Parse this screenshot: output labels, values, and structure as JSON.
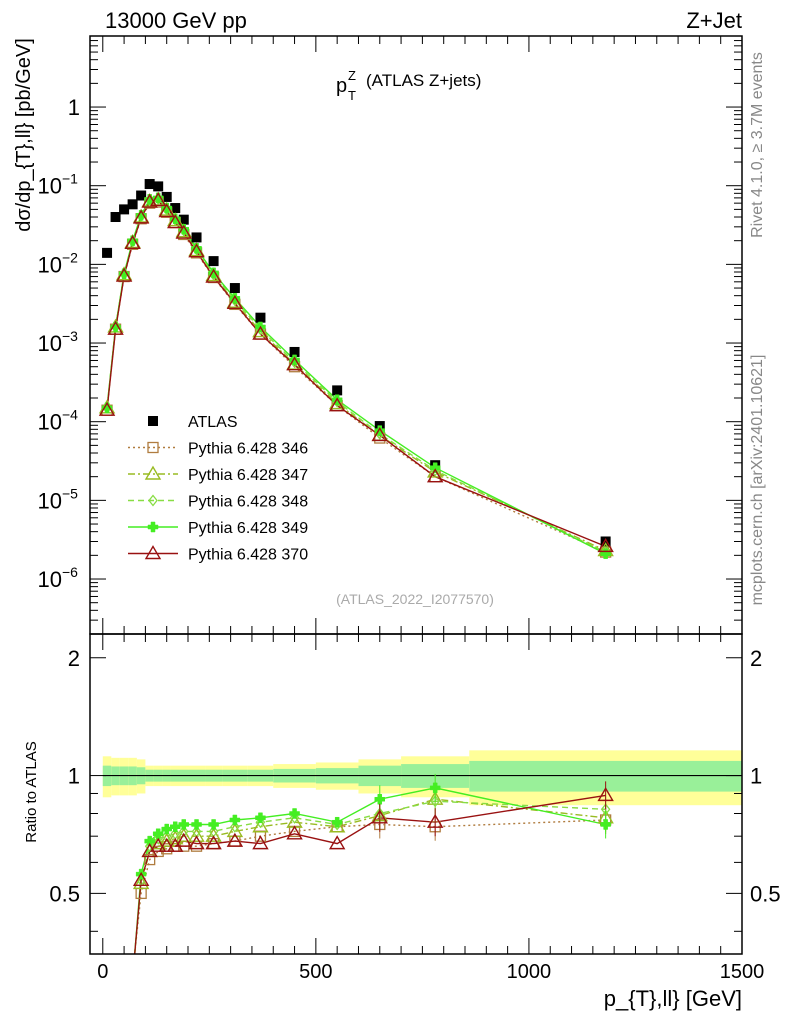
{
  "header": {
    "energy_label": "13000 GeV pp",
    "process_label": "Z+Jet",
    "side_rivet": "Rivet 4.1.0, ≥ 3.7M events",
    "side_mcplots": "mcplots.cern.ch [arXiv:2401.10621]",
    "analysis_id": "(ATLAS_2022_I2077570)"
  },
  "chart_data": [
    {
      "type": "scatter",
      "panel": "main",
      "title": "p_T^Z (ATLAS Z+jets)",
      "title_main": "p",
      "title_sup": "Z",
      "title_sub": "T",
      "title_rest": "(ATLAS Z+jets)",
      "ylabel": "dσ/dp_{T},ll} [pb/GeV]",
      "yscale": "log",
      "ylim": [
        2e-07,
        8
      ],
      "xlim": [
        -30,
        1500
      ],
      "y_ticks": [
        {
          "value": 1,
          "label": "1",
          "exp": ""
        },
        {
          "value": 0.1,
          "label": "10",
          "exp": "−1"
        },
        {
          "value": 0.01,
          "label": "10",
          "exp": "−2"
        },
        {
          "value": 0.001,
          "label": "10",
          "exp": "−3"
        },
        {
          "value": 0.0001,
          "label": "10",
          "exp": "−4"
        },
        {
          "value": 1e-05,
          "label": "10",
          "exp": "−5"
        },
        {
          "value": 1e-06,
          "label": "10",
          "exp": "−6"
        }
      ],
      "legend_position": "lower-left",
      "x": [
        10,
        30,
        50,
        70,
        90,
        110,
        130,
        150,
        170,
        190,
        220,
        260,
        310,
        370,
        450,
        550,
        650,
        780,
        1180
      ],
      "series": [
        {
          "name": "ATLAS",
          "marker": "square-filled",
          "color": "#000000",
          "line": "none",
          "values": [
            0.014,
            0.04,
            0.05,
            0.058,
            0.075,
            0.105,
            0.098,
            0.072,
            0.052,
            0.037,
            0.022,
            0.011,
            0.005,
            0.0021,
            0.00077,
            0.00025,
            8.8e-05,
            2.8e-05,
            3e-06
          ]
        },
        {
          "name": "Pythia 6.428 346",
          "marker": "square-open",
          "color": "#b07c3f",
          "line": "dotted",
          "values": [
            0.00014,
            0.0015,
            0.007,
            0.018,
            0.038,
            0.06,
            0.062,
            0.046,
            0.034,
            0.024,
            0.014,
            0.0068,
            0.0031,
            0.0013,
            0.0005,
            0.00016,
            6.2e-05,
            2e-05,
            2.2e-06
          ]
        },
        {
          "name": "Pythia 6.428 347",
          "marker": "triangle-open",
          "color": "#99bb22",
          "line": "dashdot",
          "values": [
            0.00015,
            0.0016,
            0.0074,
            0.019,
            0.04,
            0.063,
            0.066,
            0.049,
            0.036,
            0.026,
            0.015,
            0.0072,
            0.0033,
            0.0014,
            0.00054,
            0.00017,
            6.7e-05,
            2.3e-05,
            2.3e-06
          ]
        },
        {
          "name": "Pythia 6.428 348",
          "marker": "diamond-open",
          "color": "#88dd44",
          "line": "dashed",
          "values": [
            0.00015,
            0.0016,
            0.0075,
            0.0195,
            0.041,
            0.065,
            0.068,
            0.05,
            0.037,
            0.027,
            0.0155,
            0.0074,
            0.0035,
            0.0015,
            0.00057,
            0.00018,
            7e-05,
            2.4e-05,
            2.2e-06
          ]
        },
        {
          "name": "Pythia 6.428 349",
          "marker": "cross-filled",
          "color": "#44ee22",
          "line": "solid",
          "values": [
            0.00015,
            0.0016,
            0.0076,
            0.02,
            0.042,
            0.067,
            0.07,
            0.052,
            0.038,
            0.028,
            0.016,
            0.0078,
            0.0037,
            0.0016,
            0.00061,
            0.00019,
            7.7e-05,
            2.6e-05,
            2.1e-06
          ]
        },
        {
          "name": "Pythia 6.428 370",
          "marker": "triangle-open",
          "color": "#991111",
          "line": "solid",
          "values": [
            0.00014,
            0.0015,
            0.0071,
            0.0185,
            0.039,
            0.062,
            0.065,
            0.047,
            0.034,
            0.025,
            0.0145,
            0.0069,
            0.0032,
            0.0013,
            0.00053,
            0.00016,
            6.7e-05,
            2e-05,
            2.6e-06
          ]
        }
      ]
    },
    {
      "type": "line",
      "panel": "ratio",
      "ylabel": "Ratio to ATLAS",
      "xlabel": "p_{T},ll} [GeV]",
      "xlim": [
        -30,
        1500
      ],
      "ylim": [
        0.35,
        2.3
      ],
      "y_ticks": [
        {
          "value": 0.5,
          "label": "0.5"
        },
        {
          "value": 1,
          "label": "1"
        },
        {
          "value": 2,
          "label": "2"
        }
      ],
      "x_ticks": [
        {
          "value": 0,
          "label": "0"
        },
        {
          "value": 500,
          "label": "500"
        },
        {
          "value": 1000,
          "label": "1000"
        },
        {
          "value": 1500,
          "label": "1500"
        }
      ],
      "reference_line": 1,
      "bands": [
        {
          "x_edges": [
            0,
            20,
            40,
            60,
            80,
            100,
            120,
            140,
            160,
            180,
            200,
            240,
            280,
            340,
            400,
            500,
            600,
            700,
            860,
            1500
          ],
          "outer": [
            0.12,
            0.11,
            0.11,
            0.11,
            0.1,
            0.06,
            0.06,
            0.06,
            0.06,
            0.06,
            0.06,
            0.06,
            0.06,
            0.06,
            0.07,
            0.08,
            0.1,
            0.12,
            0.16
          ],
          "inner": [
            0.06,
            0.055,
            0.055,
            0.055,
            0.05,
            0.035,
            0.035,
            0.035,
            0.035,
            0.035,
            0.035,
            0.035,
            0.035,
            0.035,
            0.04,
            0.045,
            0.06,
            0.07,
            0.09
          ],
          "outer_color": "#ffff99",
          "inner_color": "#99f099"
        }
      ],
      "x": [
        90,
        110,
        130,
        150,
        170,
        190,
        220,
        260,
        310,
        370,
        450,
        550,
        650,
        780,
        1180
      ],
      "series": [
        {
          "name": "Pythia 6.428 346",
          "color": "#b07c3f",
          "line": "dotted",
          "marker": "square-open",
          "values": [
            0.5,
            0.61,
            0.64,
            0.65,
            0.66,
            0.66,
            0.66,
            0.67,
            0.68,
            0.7,
            0.72,
            0.74,
            0.75,
            0.74,
            0.77
          ]
        },
        {
          "name": "Pythia 6.428 347",
          "color": "#99bb22",
          "line": "dashdot",
          "marker": "triangle-open",
          "values": [
            0.53,
            0.64,
            0.67,
            0.68,
            0.69,
            0.7,
            0.7,
            0.7,
            0.72,
            0.74,
            0.76,
            0.74,
            0.79,
            0.87,
            0.78
          ]
        },
        {
          "name": "Pythia 6.428 348",
          "color": "#88dd44",
          "line": "dashed",
          "marker": "diamond-open",
          "values": [
            0.54,
            0.66,
            0.69,
            0.7,
            0.71,
            0.72,
            0.72,
            0.72,
            0.74,
            0.76,
            0.78,
            0.75,
            0.8,
            0.86,
            0.82
          ]
        },
        {
          "name": "Pythia 6.428 349",
          "color": "#44ee22",
          "line": "solid",
          "marker": "cross-filled",
          "values": [
            0.56,
            0.68,
            0.71,
            0.73,
            0.74,
            0.75,
            0.75,
            0.75,
            0.77,
            0.78,
            0.8,
            0.76,
            0.87,
            0.93,
            0.75
          ]
        },
        {
          "name": "Pythia 6.428 370",
          "color": "#991111",
          "line": "solid",
          "marker": "triangle-open",
          "values": [
            0.54,
            0.64,
            0.66,
            0.66,
            0.66,
            0.68,
            0.67,
            0.67,
            0.68,
            0.67,
            0.71,
            0.67,
            0.78,
            0.76,
            0.89
          ]
        }
      ]
    }
  ]
}
